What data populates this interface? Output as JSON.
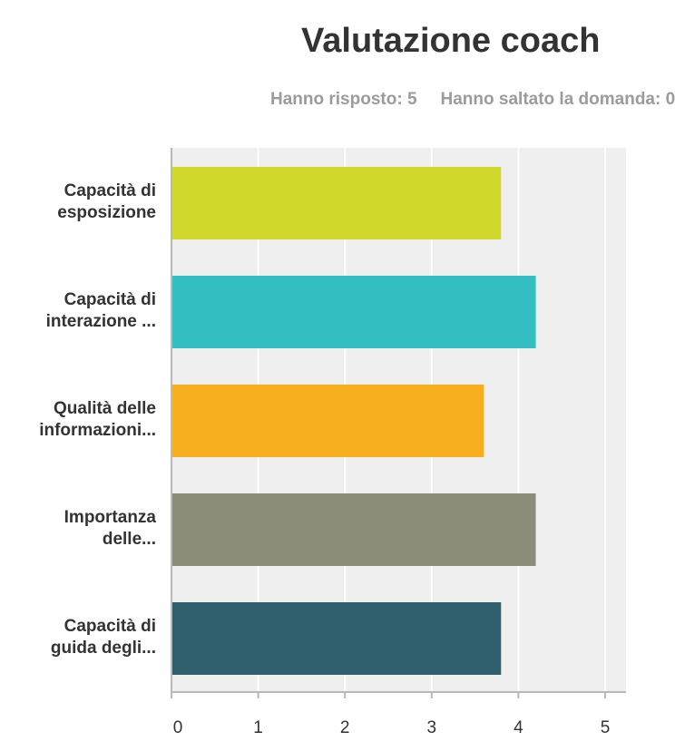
{
  "header": {
    "title": "Valutazione coach",
    "answered": "Hanno risposto: 5",
    "skipped": "Hanno saltato la domanda: 0"
  },
  "chart_data": {
    "type": "bar",
    "orientation": "horizontal",
    "categories": [
      [
        "Capacità di",
        "esposizione"
      ],
      [
        "Capacità di",
        "interazione ..."
      ],
      [
        "Qualità delle",
        "informazioni..."
      ],
      [
        "Importanza",
        "delle..."
      ],
      [
        "Capacità di",
        "guida degli..."
      ]
    ],
    "values": [
      3.8,
      4.2,
      3.6,
      4.2,
      3.8
    ],
    "colors": [
      "#d0d82b",
      "#33bfc1",
      "#f7af20",
      "#8b8c7a",
      "#2f5f6c"
    ],
    "xlim": [
      0,
      5
    ],
    "xticks": [
      0,
      1,
      2,
      3,
      4,
      5
    ],
    "grid": true,
    "background": "#efefef"
  }
}
